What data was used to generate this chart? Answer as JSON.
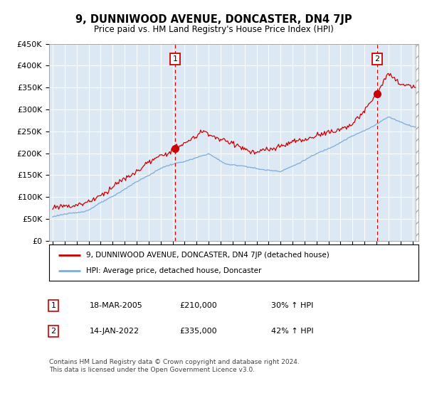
{
  "title": "9, DUNNIWOOD AVENUE, DONCASTER, DN4 7JP",
  "subtitle": "Price paid vs. HM Land Registry's House Price Index (HPI)",
  "legend_line1": "9, DUNNIWOOD AVENUE, DONCASTER, DN4 7JP (detached house)",
  "legend_line2": "HPI: Average price, detached house, Doncaster",
  "sale1_date": "18-MAR-2005",
  "sale1_price": 210000,
  "sale1_label": "30% ↑ HPI",
  "sale2_date": "14-JAN-2022",
  "sale2_price": 335000,
  "sale2_label": "42% ↑ HPI",
  "footer": "Contains HM Land Registry data © Crown copyright and database right 2024.\nThis data is licensed under the Open Government Licence v3.0.",
  "red_color": "#cc0000",
  "blue_color": "#7aacda",
  "bg_color": "#dce9f5",
  "ylim": [
    0,
    450000
  ],
  "yticks": [
    0,
    50000,
    100000,
    150000,
    200000,
    250000,
    300000,
    350000,
    400000,
    450000
  ],
  "sale1_x": 2005.21,
  "sale2_x": 2022.04,
  "xlim_start": 1994.7,
  "xlim_end": 2025.5
}
